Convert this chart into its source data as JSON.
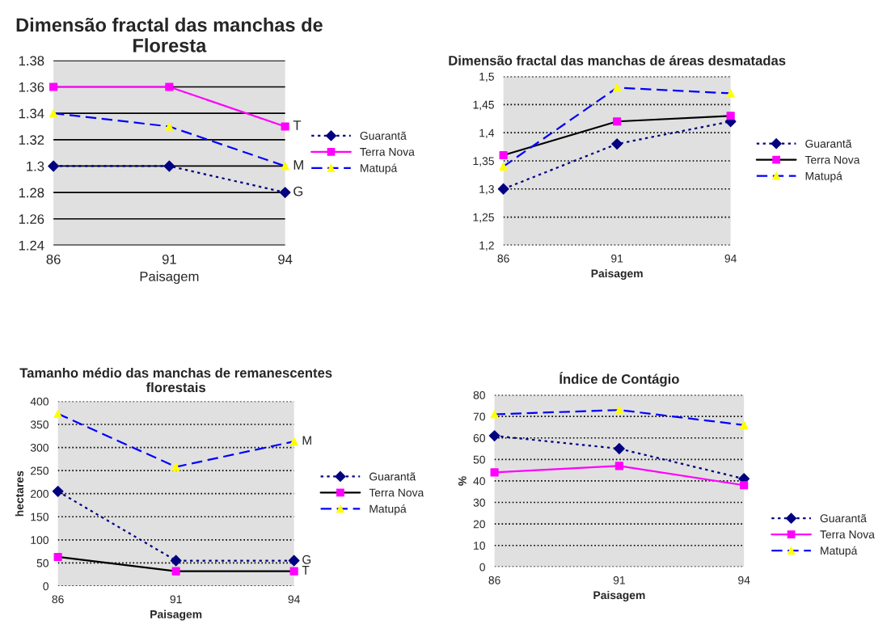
{
  "chart_data": [
    {
      "type": "line",
      "title": "Dimensão fractal das manchas de Floresta",
      "xlabel": "Paisagem",
      "categories": [
        "86",
        "91",
        "94"
      ],
      "ylim": [
        1.24,
        1.38
      ],
      "yticks": [
        1.24,
        1.26,
        1.28,
        1.3,
        1.32,
        1.34,
        1.36,
        1.38
      ],
      "grid": "y",
      "legend": "right",
      "series": [
        {
          "name": "Guarantã",
          "color": "#000080",
          "colors": [
            "#000080",
            "#000080",
            "#000080"
          ],
          "marker": "diamond",
          "line_style": "dotted",
          "values": [
            1.3,
            1.3,
            1.28
          ]
        },
        {
          "name": "Terra Nova",
          "color": "#ff00ff",
          "colors": [
            "#ff00ff",
            "#ff00ff",
            "#ff00ff"
          ],
          "marker": "square",
          "line_style": "solid",
          "values": [
            1.36,
            1.36,
            1.33
          ]
        },
        {
          "name": "Matupá",
          "color": "#0000ff",
          "colors": [
            "#ffff00",
            "#ffff00",
            "#ffff00"
          ],
          "marker": "triangle",
          "line_style": "dashed",
          "values": [
            1.34,
            1.33,
            1.3
          ]
        }
      ],
      "annotations": [
        {
          "text": "T",
          "x": "94",
          "y": 1.33
        },
        {
          "text": "M",
          "x": "94",
          "y": 1.3
        },
        {
          "text": "G",
          "x": "94",
          "y": 1.28
        }
      ]
    },
    {
      "type": "line",
      "title": "Dimensão fractal das manchas de áreas desmatadas",
      "xlabel": "Paisagem",
      "categories": [
        "86",
        "91",
        "94"
      ],
      "ylim": [
        1.2,
        1.5
      ],
      "yticks": [
        {
          "value": 1.2,
          "label": "1,2"
        },
        {
          "value": 1.25,
          "label": "1,25"
        },
        {
          "value": 1.3,
          "label": "1,3"
        },
        {
          "value": 1.35,
          "label": "1,35"
        },
        {
          "value": 1.4,
          "label": "1,4"
        },
        {
          "value": 1.45,
          "label": "1,45"
        },
        {
          "value": 1.5,
          "label": "1,5"
        }
      ],
      "grid": "y",
      "legend": "right",
      "series": [
        {
          "name": "Guarantã",
          "color": "#000080",
          "colors": [
            "#000080",
            "#000080",
            "#000080"
          ],
          "marker": "diamond",
          "line_style": "dotted",
          "values": [
            1.3,
            1.38,
            1.42
          ]
        },
        {
          "name": "Terra Nova",
          "color": "#000000",
          "colors": [
            "#ff00ff",
            "#ff00ff",
            "#ff00ff"
          ],
          "marker": "square",
          "line_style": "solid",
          "values": [
            1.36,
            1.42,
            1.43
          ]
        },
        {
          "name": "Matupá",
          "color": "#0000ff",
          "colors": [
            "#ffff00",
            "#ffff00",
            "#ffff00"
          ],
          "marker": "triangle",
          "line_style": "dashed",
          "values": [
            1.34,
            1.48,
            1.47
          ]
        }
      ]
    },
    {
      "type": "line",
      "title": "Tamanho médio das manchas de remanescentes florestais",
      "xlabel": "Paisagem",
      "ylabel": "hectares",
      "categories": [
        "86",
        "91",
        "94"
      ],
      "ylim": [
        0,
        400
      ],
      "yticks": [
        0,
        50,
        100,
        150,
        200,
        250,
        300,
        350,
        400
      ],
      "grid": "y",
      "legend": "right",
      "series": [
        {
          "name": "Guarantã",
          "color": "#000080",
          "colors": [
            "#000080",
            "#000080",
            "#000080"
          ],
          "marker": "diamond",
          "line_style": "dotted",
          "values": [
            205,
            55,
            55
          ]
        },
        {
          "name": "Terra Nova",
          "color": "#000000",
          "colors": [
            "#ff00ff",
            "#ff00ff",
            "#ff00ff"
          ],
          "marker": "square",
          "line_style": "solid",
          "values": [
            63,
            32,
            32
          ]
        },
        {
          "name": "Matupá",
          "color": "#0000ff",
          "colors": [
            "#ffff00",
            "#ffff00",
            "#ffff00"
          ],
          "marker": "triangle",
          "line_style": "dashed",
          "values": [
            373,
            258,
            313
          ]
        }
      ],
      "annotations": [
        {
          "text": "M",
          "x": "94",
          "y": 313
        },
        {
          "text": "G",
          "x": "94",
          "y": 55
        },
        {
          "text": "T",
          "x": "94",
          "y": 32
        }
      ]
    },
    {
      "type": "line",
      "title": "Índice de Contágio",
      "xlabel": "Paisagem",
      "ylabel": "%",
      "categories": [
        "86",
        "91",
        "94"
      ],
      "ylim": [
        0,
        80
      ],
      "yticks": [
        0,
        10,
        20,
        30,
        40,
        50,
        60,
        70,
        80
      ],
      "grid": "y",
      "legend": "bottom right",
      "series": [
        {
          "name": "Guarantã",
          "color": "#000080",
          "colors": [
            "#000080",
            "#000080",
            "#000080"
          ],
          "marker": "diamond",
          "line_style": "dotted",
          "values": [
            61,
            55,
            41
          ]
        },
        {
          "name": "Terra Nova",
          "color": "#ff00ff",
          "colors": [
            "#ff00ff",
            "#ff00ff",
            "#ff00ff"
          ],
          "marker": "square",
          "line_style": "solid",
          "values": [
            44,
            47,
            38
          ]
        },
        {
          "name": "Matupá",
          "color": "#0000ff",
          "colors": [
            "#ffff00",
            "#ffff00",
            "#ffff00"
          ],
          "marker": "triangle",
          "line_style": "dashed",
          "values": [
            71,
            73,
            66
          ]
        }
      ]
    }
  ]
}
